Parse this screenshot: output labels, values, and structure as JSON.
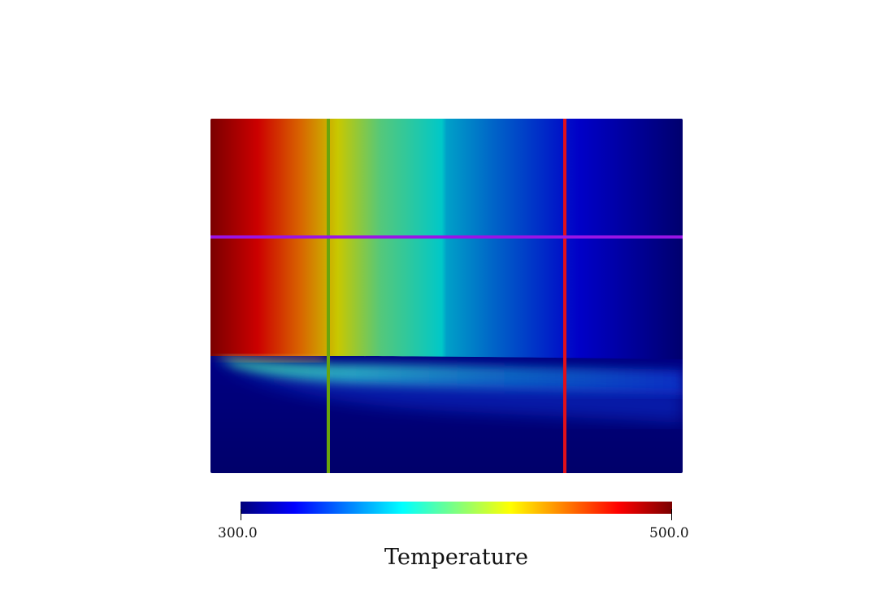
{
  "colorbar": {
    "title": "Temperature",
    "min_label": "300.0",
    "max_label": "500.0",
    "min_value": 300.0,
    "max_value": 500.0,
    "colormap": "jet",
    "colors": [
      "#00007a",
      "#0000ff",
      "#00ffff",
      "#ffff00",
      "#ff0000",
      "#7a0000"
    ]
  },
  "probe_lines": [
    {
      "name": "vertical-line-green",
      "orientation": "vertical",
      "color": "#6aa40c"
    },
    {
      "name": "vertical-line-red",
      "orientation": "vertical",
      "color": "#e0101a"
    },
    {
      "name": "horizontal-line-purple",
      "orientation": "horizontal",
      "color": "#9a14e6"
    }
  ]
}
